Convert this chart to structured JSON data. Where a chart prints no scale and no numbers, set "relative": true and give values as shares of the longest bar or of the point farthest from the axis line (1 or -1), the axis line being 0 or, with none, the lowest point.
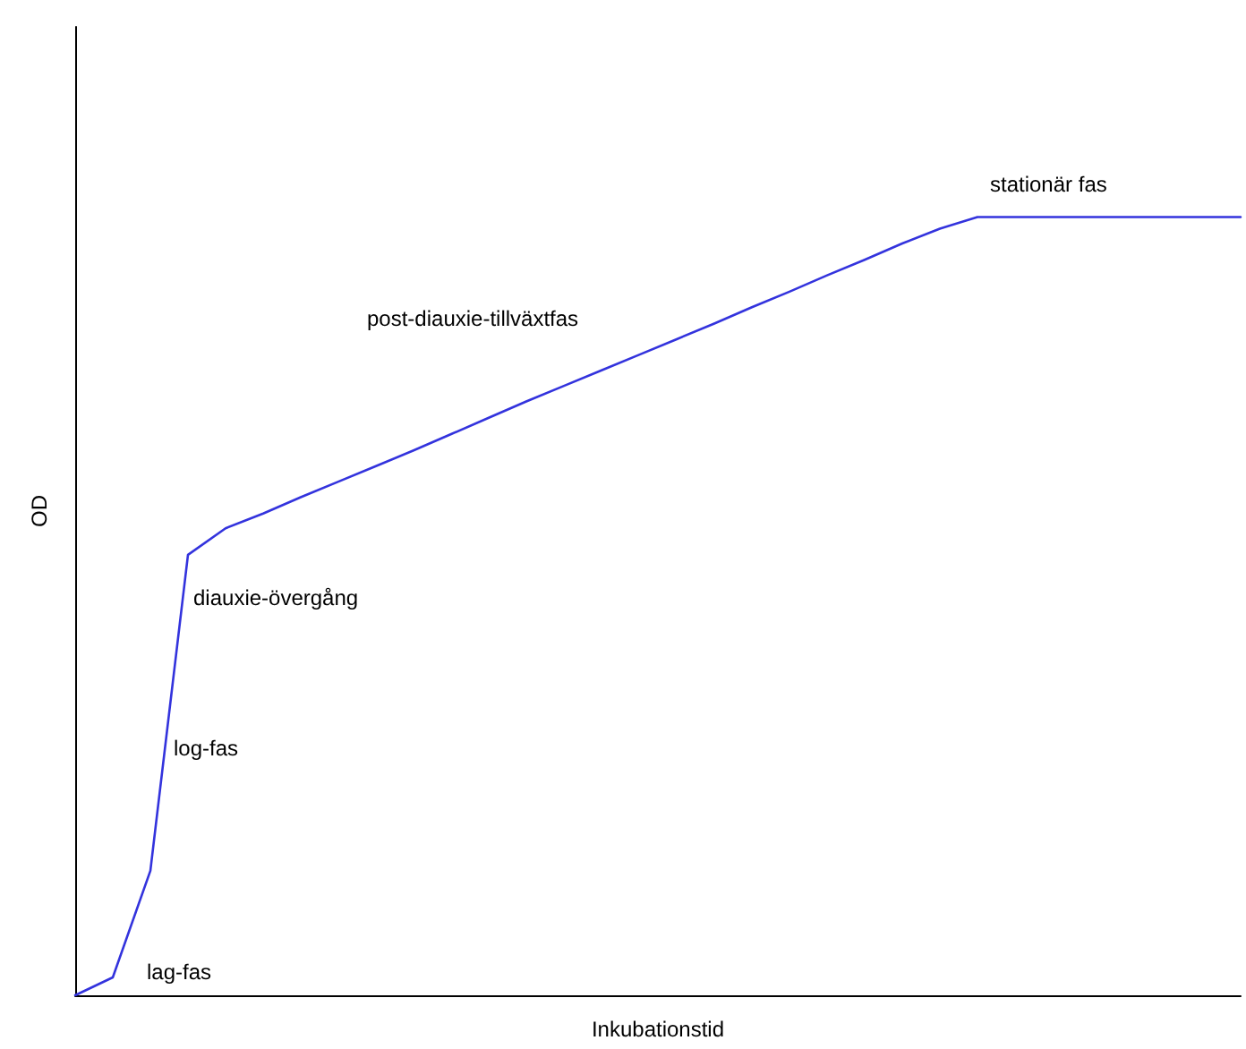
{
  "chart_data": {
    "type": "line",
    "relative": true,
    "xlabel": "Inkubationstid",
    "ylabel": "OD",
    "categories": [
      null,
      null,
      null,
      null,
      null,
      null,
      null,
      null,
      null,
      null,
      null,
      null,
      null,
      null,
      null,
      null,
      null,
      null,
      null,
      null,
      null,
      null,
      null,
      null,
      null,
      null,
      null,
      null,
      null,
      null,
      null,
      null
    ],
    "series": [
      {
        "color": "#3333dd",
        "values": [
          0,
          0.023,
          0.16,
          0.566,
          0.6,
          0.619,
          0.64,
          0.66,
          0.68,
          0.7,
          0.721,
          0.742,
          0.763,
          0.783,
          0.803,
          0.823,
          0.843,
          0.863,
          0.884,
          0.904,
          0.925,
          0.945,
          0.966,
          0.985,
          1,
          1,
          1,
          1,
          1,
          1,
          1,
          1
        ]
      }
    ],
    "annotations": [
      "lag-fas",
      "log-fas",
      "diauxie-övergång",
      "post-diauxie-tillväxtfas",
      "stationär fas"
    ],
    "grid": false,
    "marker": "none",
    "line_style": "solid"
  }
}
